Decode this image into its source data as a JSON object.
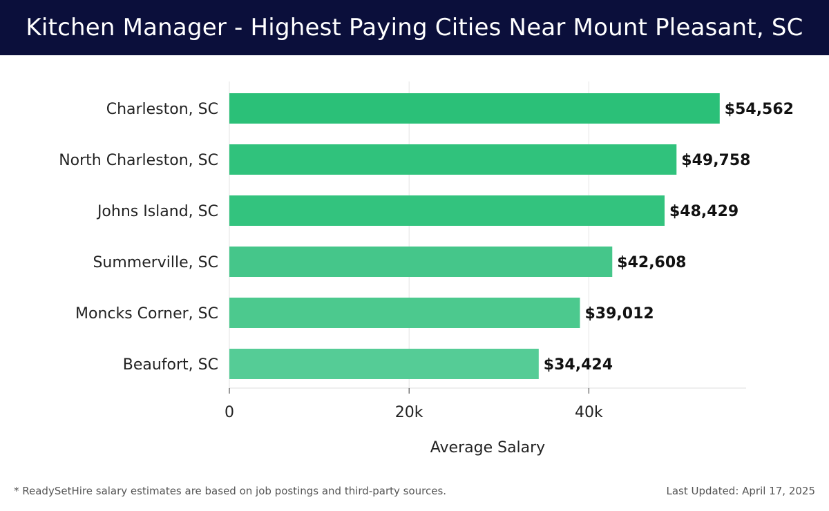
{
  "header": {
    "title": "Kitchen Manager - Highest Paying Cities Near Mount Pleasant, SC"
  },
  "footer": {
    "note": "* ReadySetHire salary estimates are based on job postings and third-party sources.",
    "updated": "Last Updated: April 17, 2025"
  },
  "chart_data": {
    "type": "bar",
    "orientation": "horizontal",
    "title": "Kitchen Manager - Highest Paying Cities Near Mount Pleasant, SC",
    "xlabel": "Average Salary",
    "ylabel": "",
    "categories": [
      "Charleston, SC",
      "North Charleston, SC",
      "Johns Island, SC",
      "Summerville, SC",
      "Moncks Corner, SC",
      "Beaufort, SC"
    ],
    "values": [
      54562,
      49758,
      48429,
      42608,
      39012,
      34424
    ],
    "value_labels": [
      "$54,562",
      "$49,758",
      "$48,429",
      "$42,608",
      "$39,012",
      "$34,424"
    ],
    "xlim": [
      0,
      57500
    ],
    "xticks": [
      0,
      20000,
      40000
    ],
    "xtick_labels": [
      "0",
      "20k",
      "40k"
    ],
    "grid": "vertical",
    "colors": [
      "#2bc078",
      "#30c27c",
      "#33c37e",
      "#45c68a",
      "#4cc98e",
      "#55cc96"
    ]
  }
}
